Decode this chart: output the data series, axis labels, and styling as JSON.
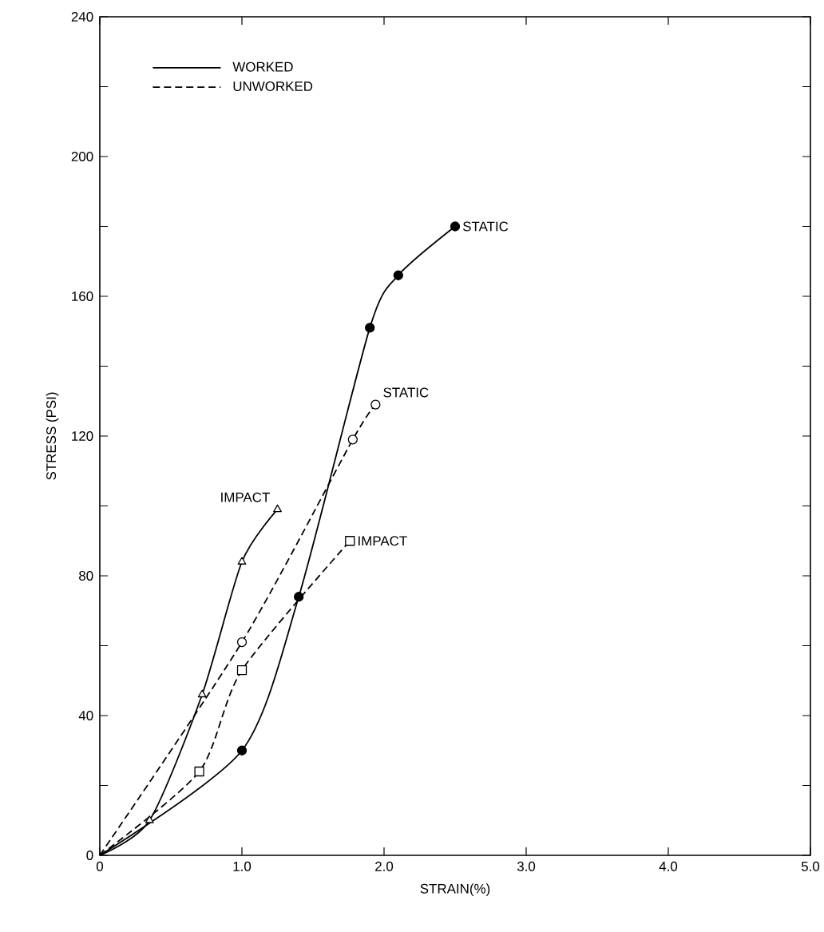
{
  "chart_data": {
    "type": "line",
    "xlabel": "STRAIN(%)",
    "ylabel": "STRESS (PSI)",
    "xlim": [
      0,
      5
    ],
    "xticks": [
      0,
      {
        "value": 1,
        "label": "1.0"
      },
      {
        "value": 2,
        "label": "2.0"
      },
      {
        "value": 3,
        "label": "3.0"
      },
      {
        "value": 4,
        "label": "4.0"
      },
      {
        "value": 5,
        "label": "5.0"
      }
    ],
    "ylim": [
      0,
      240
    ],
    "yticks": [
      0,
      {
        "value": 20,
        "label": null
      },
      40,
      {
        "value": 60,
        "label": null
      },
      80,
      {
        "value": 100,
        "label": null
      },
      120,
      {
        "value": 140,
        "label": null
      },
      160,
      {
        "value": 180,
        "label": null
      },
      200,
      {
        "value": 220,
        "label": null
      },
      240
    ],
    "grid": false,
    "legend": "top left",
    "annotations": [
      "WORKED",
      "UNWORKED"
    ],
    "series": [
      {
        "name": "STATIC",
        "color": "#000000",
        "line_style": "solid",
        "marker": "circle",
        "x": [
          0,
          1.0,
          1.4,
          1.9,
          2.1,
          2.5
        ],
        "values": [
          0,
          30,
          74,
          151,
          166,
          180
        ]
      },
      {
        "name": "STATIC",
        "color": "#000000",
        "line_style": "dashed",
        "marker": "circle",
        "x": [
          0,
          1.0,
          1.78,
          1.94
        ],
        "values": [
          0,
          61,
          119,
          129
        ]
      },
      {
        "name": "IMPACT",
        "color": "#000000",
        "line_style": "solid",
        "marker": "triangle",
        "x": [
          0,
          0.35,
          0.72,
          1.0,
          1.25
        ],
        "values": [
          0,
          10,
          46,
          84,
          99
        ]
      },
      {
        "name": "IMPACT",
        "color": "#000000",
        "line_style": "dashed",
        "marker": "square",
        "x": [
          0,
          0.7,
          1.0,
          1.76
        ],
        "values": [
          0,
          24,
          53,
          90
        ]
      }
    ]
  }
}
